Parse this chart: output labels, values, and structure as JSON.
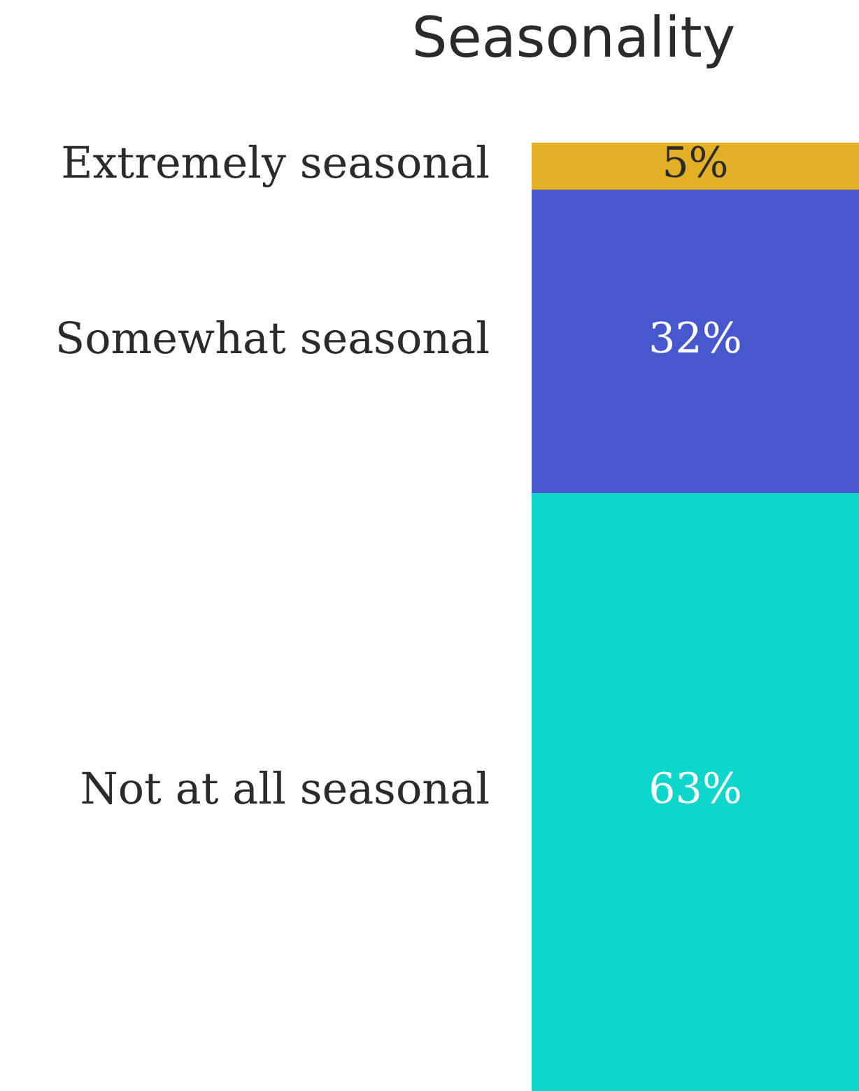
{
  "chart_data": {
    "type": "bar",
    "title": "Seasonality",
    "categories": [
      null
    ],
    "stacked": true,
    "ylim": [
      0,
      100
    ],
    "tick_labels": false,
    "legend": false,
    "series": [
      {
        "name": "Not at all seasonal",
        "color": "#0fd6cb",
        "values": [
          63
        ],
        "value_labels": [
          "63%"
        ]
      },
      {
        "name": "Somewhat seasonal",
        "color": "#4758cf",
        "values": [
          32
        ],
        "value_labels": [
          "32%"
        ]
      },
      {
        "name": "Extremely seasonal",
        "color": "#e3b025",
        "values": [
          5
        ],
        "value_labels": [
          "5%"
        ]
      }
    ]
  }
}
